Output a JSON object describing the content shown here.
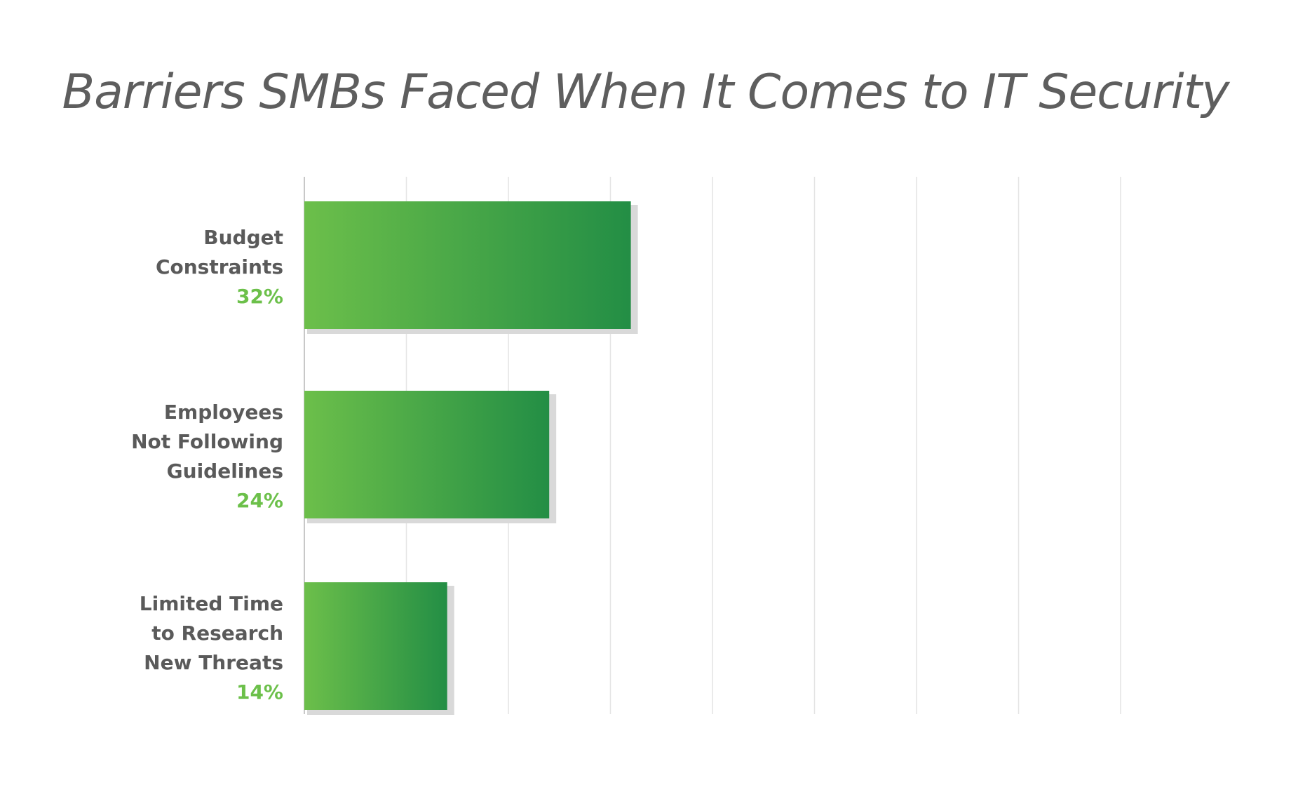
{
  "chart_data": {
    "type": "bar",
    "orientation": "horizontal",
    "title": "Barriers SMBs Faced When It Comes to IT Security",
    "xlabel": "",
    "ylabel": "",
    "categories": [
      [
        "Budget",
        "Constraints"
      ],
      [
        "Employees",
        "Not Following",
        "Guidelines"
      ],
      [
        "Limited Time",
        "to Research",
        "New Threats"
      ]
    ],
    "values": [
      32,
      24,
      14
    ],
    "value_labels": [
      "32%",
      "24%",
      "14%"
    ],
    "xlim": [
      0,
      80
    ],
    "grid": true,
    "legend": "none",
    "colors": {
      "bar_start": "#6cbf4a",
      "bar_end": "#238e45",
      "value_label": "#6cc04a",
      "category_label": "#5a5a5a",
      "title": "#5e5e5e",
      "grid": "#e4e4e4",
      "axis": "#c8c8c8",
      "shadow": "#d9d9d9"
    }
  }
}
